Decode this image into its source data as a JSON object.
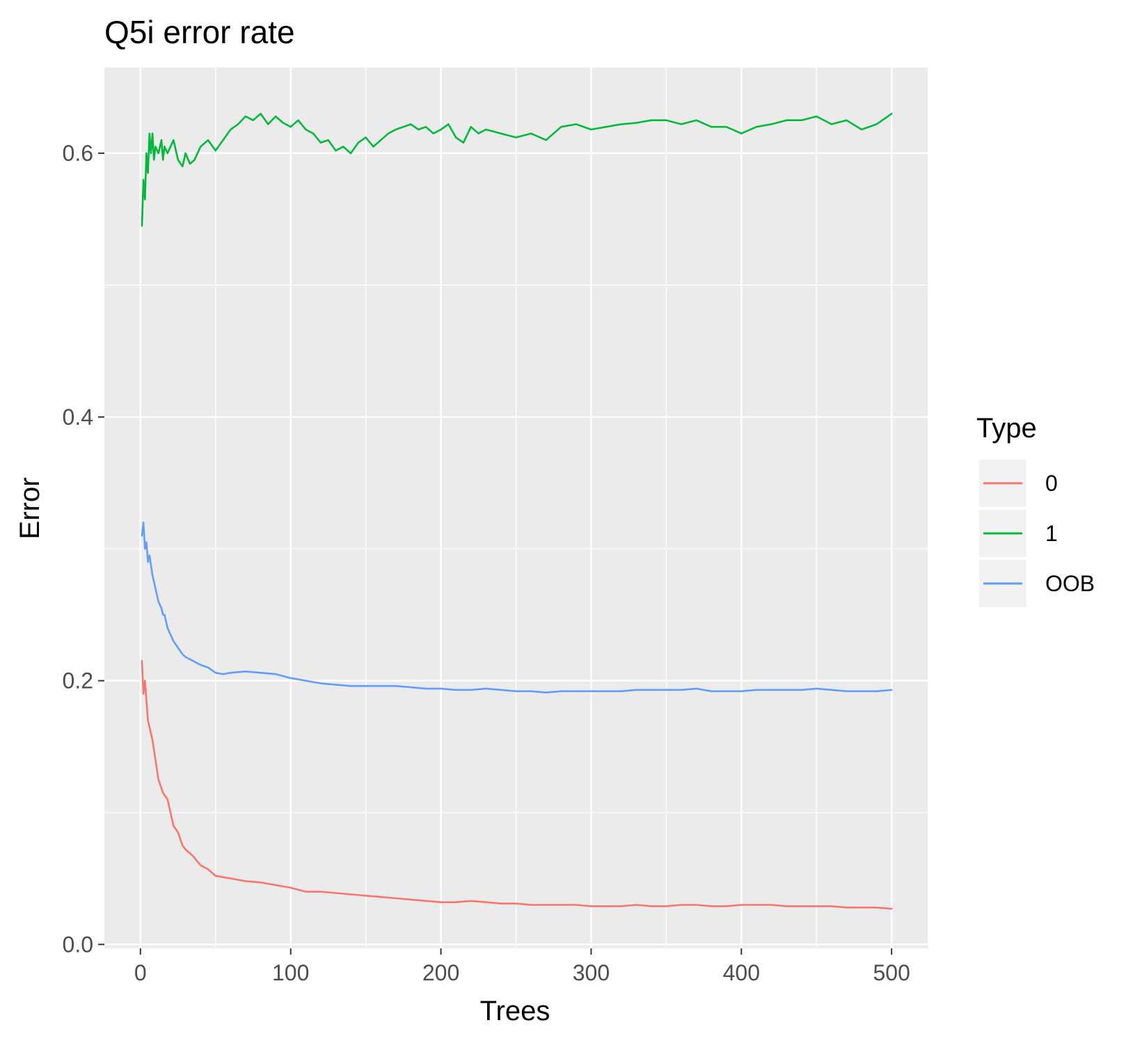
{
  "chart_data": {
    "type": "line",
    "title": "Q5i error rate",
    "xlabel": "Trees",
    "ylabel": "Error",
    "xlim": [
      -24,
      524
    ],
    "ylim": [
      -0.003,
      0.665
    ],
    "xticks": [
      0,
      100,
      200,
      300,
      400,
      500
    ],
    "xtick_labels": [
      "0",
      "100",
      "200",
      "300",
      "400",
      "500"
    ],
    "yticks": [
      0.0,
      0.2,
      0.4,
      0.6
    ],
    "ytick_labels": [
      "0.0",
      "0.2",
      "0.4",
      "0.6"
    ],
    "grid": true,
    "legend": {
      "title": "Type",
      "position": "right"
    },
    "panel_color": "#EBEBEB",
    "grid_color": "#FFFFFF",
    "series": [
      {
        "name": "0",
        "color": "#F8766D",
        "x": [
          1,
          2,
          3,
          5,
          8,
          10,
          12,
          15,
          18,
          20,
          22,
          25,
          28,
          30,
          35,
          40,
          45,
          50,
          55,
          60,
          70,
          80,
          90,
          100,
          110,
          120,
          130,
          140,
          150,
          160,
          170,
          180,
          190,
          200,
          210,
          220,
          230,
          240,
          250,
          260,
          270,
          280,
          290,
          300,
          310,
          320,
          330,
          340,
          350,
          360,
          370,
          380,
          390,
          400,
          410,
          420,
          430,
          440,
          450,
          460,
          470,
          480,
          490,
          500
        ],
        "y": [
          0.215,
          0.19,
          0.2,
          0.17,
          0.155,
          0.14,
          0.125,
          0.115,
          0.11,
          0.1,
          0.09,
          0.085,
          0.075,
          0.072,
          0.067,
          0.06,
          0.057,
          0.052,
          0.051,
          0.05,
          0.048,
          0.047,
          0.045,
          0.043,
          0.04,
          0.04,
          0.039,
          0.038,
          0.037,
          0.036,
          0.035,
          0.034,
          0.033,
          0.032,
          0.032,
          0.033,
          0.032,
          0.031,
          0.031,
          0.03,
          0.03,
          0.03,
          0.03,
          0.029,
          0.029,
          0.029,
          0.03,
          0.029,
          0.029,
          0.03,
          0.03,
          0.029,
          0.029,
          0.03,
          0.03,
          0.03,
          0.029,
          0.029,
          0.029,
          0.029,
          0.028,
          0.028,
          0.028,
          0.027
        ]
      },
      {
        "name": "1",
        "color": "#00BA38",
        "x": [
          1,
          2,
          3,
          4,
          5,
          6,
          7,
          8,
          9,
          10,
          12,
          14,
          15,
          16,
          18,
          20,
          22,
          25,
          28,
          30,
          33,
          36,
          40,
          45,
          50,
          55,
          60,
          65,
          70,
          75,
          80,
          85,
          90,
          95,
          100,
          105,
          110,
          115,
          120,
          125,
          130,
          135,
          140,
          145,
          150,
          155,
          160,
          165,
          170,
          175,
          180,
          185,
          190,
          195,
          200,
          205,
          210,
          215,
          220,
          225,
          230,
          240,
          250,
          260,
          270,
          280,
          290,
          300,
          310,
          320,
          330,
          340,
          350,
          360,
          370,
          380,
          390,
          400,
          410,
          420,
          430,
          440,
          450,
          460,
          470,
          480,
          490,
          500
        ],
        "y": [
          0.545,
          0.58,
          0.565,
          0.6,
          0.585,
          0.615,
          0.6,
          0.615,
          0.595,
          0.605,
          0.6,
          0.61,
          0.595,
          0.605,
          0.6,
          0.605,
          0.61,
          0.595,
          0.59,
          0.6,
          0.592,
          0.595,
          0.605,
          0.61,
          0.602,
          0.61,
          0.618,
          0.622,
          0.628,
          0.625,
          0.63,
          0.622,
          0.628,
          0.623,
          0.62,
          0.625,
          0.618,
          0.615,
          0.608,
          0.61,
          0.602,
          0.605,
          0.6,
          0.608,
          0.612,
          0.605,
          0.61,
          0.615,
          0.618,
          0.62,
          0.622,
          0.618,
          0.62,
          0.615,
          0.618,
          0.622,
          0.612,
          0.608,
          0.62,
          0.615,
          0.618,
          0.615,
          0.612,
          0.615,
          0.61,
          0.62,
          0.622,
          0.618,
          0.62,
          0.622,
          0.623,
          0.625,
          0.625,
          0.622,
          0.625,
          0.62,
          0.62,
          0.615,
          0.62,
          0.622,
          0.625,
          0.625,
          0.628,
          0.622,
          0.625,
          0.618,
          0.622,
          0.63
        ]
      },
      {
        "name": "OOB",
        "color": "#619CFF",
        "x": [
          1,
          2,
          3,
          4,
          5,
          6,
          8,
          10,
          12,
          14,
          15,
          16,
          18,
          20,
          22,
          25,
          28,
          30,
          35,
          40,
          45,
          50,
          55,
          60,
          70,
          80,
          90,
          100,
          110,
          120,
          130,
          140,
          150,
          160,
          170,
          180,
          190,
          200,
          210,
          220,
          230,
          240,
          250,
          260,
          270,
          280,
          290,
          300,
          310,
          320,
          330,
          340,
          350,
          360,
          370,
          380,
          390,
          400,
          410,
          420,
          430,
          440,
          450,
          460,
          470,
          480,
          490,
          500
        ],
        "y": [
          0.31,
          0.32,
          0.3,
          0.305,
          0.29,
          0.295,
          0.28,
          0.27,
          0.26,
          0.255,
          0.25,
          0.25,
          0.24,
          0.235,
          0.23,
          0.225,
          0.22,
          0.218,
          0.215,
          0.212,
          0.21,
          0.206,
          0.205,
          0.206,
          0.207,
          0.206,
          0.205,
          0.202,
          0.2,
          0.198,
          0.197,
          0.196,
          0.196,
          0.196,
          0.196,
          0.195,
          0.194,
          0.194,
          0.193,
          0.193,
          0.194,
          0.193,
          0.192,
          0.192,
          0.191,
          0.192,
          0.192,
          0.192,
          0.192,
          0.192,
          0.193,
          0.193,
          0.193,
          0.193,
          0.194,
          0.192,
          0.192,
          0.192,
          0.193,
          0.193,
          0.193,
          0.193,
          0.194,
          0.193,
          0.192,
          0.192,
          0.192,
          0.193
        ]
      }
    ]
  }
}
